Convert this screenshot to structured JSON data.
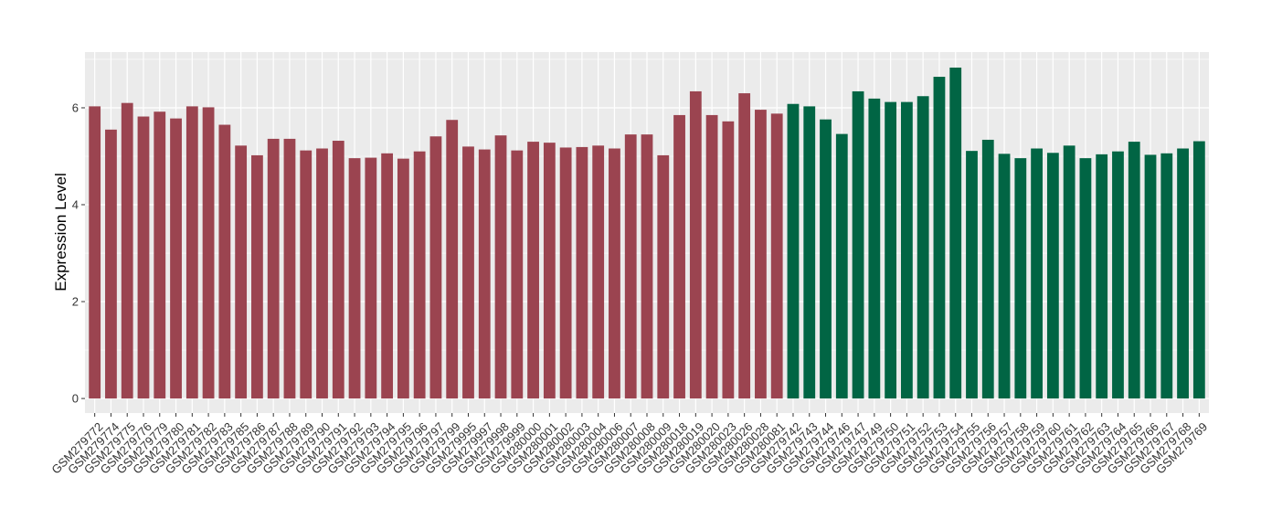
{
  "chart_data": {
    "type": "bar",
    "title": "",
    "xlabel": "",
    "ylabel": "Expression Level",
    "ylim": [
      -0.3,
      7.15
    ],
    "yticks": [
      0,
      2,
      4,
      6
    ],
    "grid": true,
    "legend": "none",
    "colors": {
      "group_a": "#9b4450",
      "group_b": "#016544",
      "panel": "#ebebeb",
      "grid": "#ffffff"
    },
    "categories": [
      "GSM279772",
      "GSM279774",
      "GSM279775",
      "GSM279776",
      "GSM279779",
      "GSM279780",
      "GSM279781",
      "GSM279782",
      "GSM279783",
      "GSM279785",
      "GSM279786",
      "GSM279787",
      "GSM279788",
      "GSM279789",
      "GSM279790",
      "GSM279791",
      "GSM279792",
      "GSM279793",
      "GSM279794",
      "GSM279795",
      "GSM279796",
      "GSM279797",
      "GSM279799",
      "GSM279995",
      "GSM279997",
      "GSM279998",
      "GSM279999",
      "GSM280000",
      "GSM280001",
      "GSM280002",
      "GSM280003",
      "GSM280004",
      "GSM280006",
      "GSM280007",
      "GSM280008",
      "GSM280009",
      "GSM280018",
      "GSM280019",
      "GSM280020",
      "GSM280023",
      "GSM280026",
      "GSM280028",
      "GSM280081",
      "GSM279742",
      "GSM279743",
      "GSM279744",
      "GSM279746",
      "GSM279747",
      "GSM279749",
      "GSM279750",
      "GSM279751",
      "GSM279752",
      "GSM279753",
      "GSM279754",
      "GSM279755",
      "GSM279756",
      "GSM279757",
      "GSM279758",
      "GSM279759",
      "GSM279760",
      "GSM279761",
      "GSM279762",
      "GSM279763",
      "GSM279764",
      "GSM279765",
      "GSM279766",
      "GSM279767",
      "GSM279768",
      "GSM279769"
    ],
    "values": [
      6.03,
      5.55,
      6.1,
      5.82,
      5.92,
      5.78,
      6.03,
      6.01,
      5.65,
      5.22,
      5.02,
      5.36,
      5.36,
      5.12,
      5.16,
      5.32,
      4.96,
      4.97,
      5.06,
      4.95,
      5.1,
      5.41,
      5.75,
      5.2,
      5.14,
      5.43,
      5.12,
      5.3,
      5.28,
      5.18,
      5.19,
      5.22,
      5.16,
      5.45,
      5.45,
      5.02,
      5.85,
      6.34,
      5.85,
      5.72,
      6.3,
      5.96,
      5.88,
      6.08,
      6.03,
      5.76,
      5.46,
      6.34,
      6.19,
      6.12,
      6.12,
      6.24,
      6.64,
      6.83,
      5.11,
      5.34,
      5.05,
      4.96,
      5.16,
      5.07,
      5.22,
      4.96,
      5.04,
      5.1,
      5.3,
      5.03,
      5.06,
      5.16,
      5.31
    ],
    "groups": [
      "a",
      "a",
      "a",
      "a",
      "a",
      "a",
      "a",
      "a",
      "a",
      "a",
      "a",
      "a",
      "a",
      "a",
      "a",
      "a",
      "a",
      "a",
      "a",
      "a",
      "a",
      "a",
      "a",
      "a",
      "a",
      "a",
      "a",
      "a",
      "a",
      "a",
      "a",
      "a",
      "a",
      "a",
      "a",
      "a",
      "a",
      "a",
      "a",
      "a",
      "a",
      "a",
      "a",
      "b",
      "b",
      "b",
      "b",
      "b",
      "b",
      "b",
      "b",
      "b",
      "b",
      "b",
      "b",
      "b",
      "b",
      "b",
      "b",
      "b",
      "b",
      "b",
      "b",
      "b",
      "b",
      "b",
      "b",
      "b",
      "b"
    ]
  }
}
